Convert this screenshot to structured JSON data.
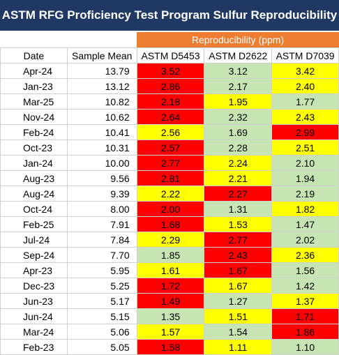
{
  "title": "ASTM RFG Proficiency Test Program Sulfur Reproducibility",
  "group_header": "Reproducibility (ppm)",
  "columns": [
    "Date",
    "Sample Mean",
    "ASTM D5453",
    "ASTM D2622",
    "ASTM D7039"
  ],
  "colors": {
    "red": "#ff0000",
    "yellow": "#ffff00",
    "green": "#c6e5b3",
    "title_bg": "#1f3864",
    "subhead_bg": "#ed7d31"
  },
  "rows": [
    {
      "date": "Apr-24",
      "mean": "13.79",
      "v": [
        "3.52",
        "3.12",
        "3.42"
      ],
      "c": [
        "red",
        "green",
        "yellow"
      ]
    },
    {
      "date": "Jan-23",
      "mean": "13.12",
      "v": [
        "2.86",
        "2.17",
        "2.40"
      ],
      "c": [
        "red",
        "green",
        "yellow"
      ]
    },
    {
      "date": "Mar-25",
      "mean": "10.82",
      "v": [
        "2.18",
        "1.95",
        "1.77"
      ],
      "c": [
        "red",
        "yellow",
        "green"
      ]
    },
    {
      "date": "Nov-24",
      "mean": "10.62",
      "v": [
        "2.64",
        "2.32",
        "2.43"
      ],
      "c": [
        "red",
        "green",
        "yellow"
      ]
    },
    {
      "date": "Feb-24",
      "mean": "10.41",
      "v": [
        "2.56",
        "1.69",
        "2.99"
      ],
      "c": [
        "yellow",
        "green",
        "red"
      ]
    },
    {
      "date": "Oct-23",
      "mean": "10.31",
      "v": [
        "2.57",
        "2.28",
        "2.51"
      ],
      "c": [
        "red",
        "green",
        "yellow"
      ]
    },
    {
      "date": "Jan-24",
      "mean": "10.00",
      "v": [
        "2.77",
        "2.24",
        "2.10"
      ],
      "c": [
        "red",
        "yellow",
        "green"
      ]
    },
    {
      "date": "Aug-23",
      "mean": "9.56",
      "v": [
        "2.81",
        "2.21",
        "1.94"
      ],
      "c": [
        "red",
        "yellow",
        "green"
      ]
    },
    {
      "date": "Aug-24",
      "mean": "9.39",
      "v": [
        "2.22",
        "2.27",
        "2.19"
      ],
      "c": [
        "yellow",
        "red",
        "green"
      ]
    },
    {
      "date": "Oct-24",
      "mean": "8.00",
      "v": [
        "2.00",
        "1.31",
        "1.82"
      ],
      "c": [
        "red",
        "green",
        "yellow"
      ]
    },
    {
      "date": "Feb-25",
      "mean": "7.91",
      "v": [
        "1.68",
        "1.53",
        "1.47"
      ],
      "c": [
        "red",
        "yellow",
        "green"
      ]
    },
    {
      "date": "Jul-24",
      "mean": "7.84",
      "v": [
        "2.29",
        "2.77",
        "2.02"
      ],
      "c": [
        "yellow",
        "red",
        "green"
      ]
    },
    {
      "date": "Sep-24",
      "mean": "7.70",
      "v": [
        "1.85",
        "2.43",
        "2.36"
      ],
      "c": [
        "green",
        "red",
        "yellow"
      ]
    },
    {
      "date": "Apr-23",
      "mean": "5.95",
      "v": [
        "1.61",
        "1.67",
        "1.56"
      ],
      "c": [
        "yellow",
        "red",
        "green"
      ]
    },
    {
      "date": "Dec-23",
      "mean": "5.25",
      "v": [
        "1.72",
        "1.67",
        "1.42"
      ],
      "c": [
        "red",
        "yellow",
        "green"
      ]
    },
    {
      "date": "Jun-23",
      "mean": "5.17",
      "v": [
        "1.49",
        "1.27",
        "1.37"
      ],
      "c": [
        "red",
        "green",
        "yellow"
      ]
    },
    {
      "date": "Jun-24",
      "mean": "5.15",
      "v": [
        "1.35",
        "1.51",
        "1.71"
      ],
      "c": [
        "green",
        "yellow",
        "red"
      ]
    },
    {
      "date": "Mar-24",
      "mean": "5.06",
      "v": [
        "1.57",
        "1.54",
        "1.86"
      ],
      "c": [
        "yellow",
        "green",
        "red"
      ]
    },
    {
      "date": "Feb-23",
      "mean": "5.05",
      "v": [
        "1.58",
        "1.11",
        "1.10"
      ],
      "c": [
        "red",
        "yellow",
        "green"
      ]
    }
  ]
}
